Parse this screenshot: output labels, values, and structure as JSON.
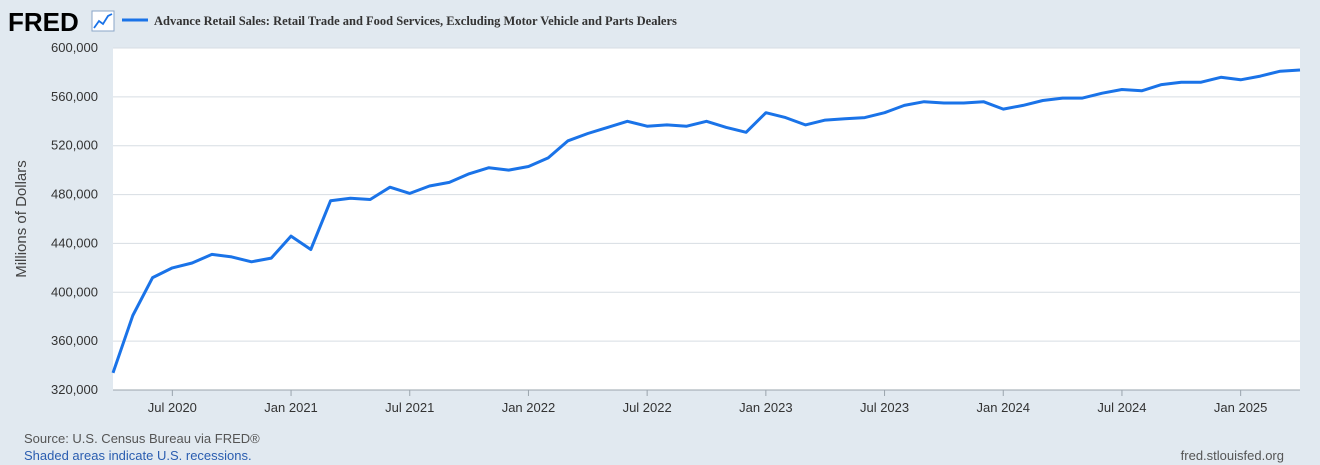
{
  "logo": {
    "text": "FRED",
    "icon": "trend-line-icon"
  },
  "footer": {
    "source": "Source: U.S. Census Bureau via FRED®",
    "recessions": "Shaded areas indicate U.S. recessions.",
    "site": "fred.stlouisfed.org"
  },
  "colors": {
    "background": "#e1e9f0",
    "plot": "#ffffff",
    "grid": "#d7dde3",
    "line": "#1a73e8",
    "footer_link": "#2a5db0"
  },
  "chart_data": {
    "type": "line",
    "title": "Advance Retail Sales: Retail Trade and Food Services, Excluding Motor Vehicle and Parts Dealers",
    "ylabel": "Millions of Dollars",
    "xlabel": "",
    "ylim": [
      320000,
      600000
    ],
    "yticks": [
      320000,
      360000,
      400000,
      440000,
      480000,
      520000,
      560000,
      600000
    ],
    "ytick_labels": [
      "320,000",
      "360,000",
      "400,000",
      "440,000",
      "480,000",
      "520,000",
      "560,000",
      "600,000"
    ],
    "xticks": [
      "2020-07",
      "2021-01",
      "2021-07",
      "2022-01",
      "2022-07",
      "2023-01",
      "2023-07",
      "2024-01",
      "2024-07",
      "2025-01"
    ],
    "xtick_labels": [
      "Jul 2020",
      "Jan 2021",
      "Jul 2021",
      "Jan 2022",
      "Jul 2022",
      "Jan 2023",
      "Jul 2023",
      "Jan 2024",
      "Jul 2024",
      "Jan 2025"
    ],
    "x_range": [
      "2020-04",
      "2025-04"
    ],
    "grid": true,
    "legend": "top-left",
    "series": [
      {
        "name": "Advance Retail Sales: Retail Trade and Food Services, Excluding Motor Vehicle and Parts Dealers",
        "x": [
          "2020-04",
          "2020-05",
          "2020-06",
          "2020-07",
          "2020-08",
          "2020-09",
          "2020-10",
          "2020-11",
          "2020-12",
          "2021-01",
          "2021-02",
          "2021-03",
          "2021-04",
          "2021-05",
          "2021-06",
          "2021-07",
          "2021-08",
          "2021-09",
          "2021-10",
          "2021-11",
          "2021-12",
          "2022-01",
          "2022-02",
          "2022-03",
          "2022-04",
          "2022-05",
          "2022-06",
          "2022-07",
          "2022-08",
          "2022-09",
          "2022-10",
          "2022-11",
          "2022-12",
          "2023-01",
          "2023-02",
          "2023-03",
          "2023-04",
          "2023-05",
          "2023-06",
          "2023-07",
          "2023-08",
          "2023-09",
          "2023-10",
          "2023-11",
          "2023-12",
          "2024-01",
          "2024-02",
          "2024-03",
          "2024-04",
          "2024-05",
          "2024-06",
          "2024-07",
          "2024-08",
          "2024-09",
          "2024-10",
          "2024-11",
          "2024-12",
          "2025-01",
          "2025-02",
          "2025-03",
          "2025-04"
        ],
        "values": [
          334000,
          381000,
          412000,
          420000,
          424000,
          431000,
          429000,
          425000,
          428000,
          446000,
          435000,
          475000,
          477000,
          476000,
          486000,
          481000,
          487000,
          490000,
          497000,
          502000,
          500000,
          503000,
          510000,
          524000,
          530000,
          535000,
          540000,
          536000,
          537000,
          536000,
          540000,
          535000,
          531000,
          547000,
          543000,
          537000,
          541000,
          542000,
          543000,
          547000,
          553000,
          556000,
          555000,
          555000,
          556000,
          550000,
          553000,
          557000,
          559000,
          559000,
          563000,
          566000,
          565000,
          570000,
          572000,
          572000,
          576000,
          574000,
          577000,
          581000,
          582000
        ]
      }
    ]
  }
}
